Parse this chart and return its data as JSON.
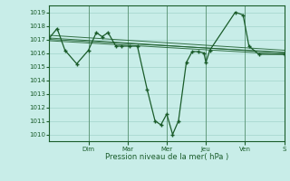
{
  "title": "",
  "xlabel": "Pression niveau de la mer( hPa )",
  "ylabel": "",
  "bg_color": "#c8ede8",
  "grid_color": "#a8d8d0",
  "line_color": "#1a5c2a",
  "marker_color": "#1a5c2a",
  "ylim": [
    1009.5,
    1019.5
  ],
  "yticks": [
    1010,
    1011,
    1012,
    1013,
    1014,
    1015,
    1016,
    1017,
    1018,
    1019
  ],
  "xlim": [
    0,
    12
  ],
  "day_labels": [
    "Dim",
    "Mar",
    "Mer",
    "Jeu",
    "Ven",
    "S"
  ],
  "day_positions": [
    2,
    4,
    6,
    8,
    10,
    12
  ],
  "vline_positions": [
    2,
    4,
    6,
    8,
    10,
    12
  ],
  "series": [
    [
      0.0,
      1017.1
    ],
    [
      0.4,
      1017.8
    ],
    [
      0.8,
      1016.2
    ],
    [
      1.4,
      1015.2
    ],
    [
      2.0,
      1016.2
    ],
    [
      2.4,
      1017.5
    ],
    [
      2.7,
      1017.2
    ],
    [
      3.0,
      1017.5
    ],
    [
      3.4,
      1016.5
    ],
    [
      3.7,
      1016.5
    ],
    [
      4.1,
      1016.5
    ],
    [
      4.5,
      1016.5
    ],
    [
      5.0,
      1013.3
    ],
    [
      5.4,
      1011.0
    ],
    [
      5.7,
      1010.7
    ],
    [
      6.0,
      1011.5
    ],
    [
      6.3,
      1010.0
    ],
    [
      6.6,
      1011.0
    ],
    [
      7.0,
      1015.3
    ],
    [
      7.3,
      1016.1
    ],
    [
      7.6,
      1016.1
    ],
    [
      7.9,
      1016.0
    ],
    [
      8.0,
      1015.3
    ],
    [
      8.2,
      1016.2
    ],
    [
      9.5,
      1019.0
    ],
    [
      9.9,
      1018.8
    ],
    [
      10.2,
      1016.5
    ],
    [
      10.7,
      1015.9
    ],
    [
      12.0,
      1015.9
    ]
  ],
  "trend_series": [
    [
      [
        0,
        12
      ],
      [
        1017.1,
        1016.0
      ]
    ],
    [
      [
        0,
        12
      ],
      [
        1017.3,
        1016.2
      ]
    ],
    [
      [
        0,
        12
      ],
      [
        1016.9,
        1015.9
      ]
    ],
    [
      [
        0,
        12
      ],
      [
        1017.0,
        1016.05
      ]
    ]
  ]
}
